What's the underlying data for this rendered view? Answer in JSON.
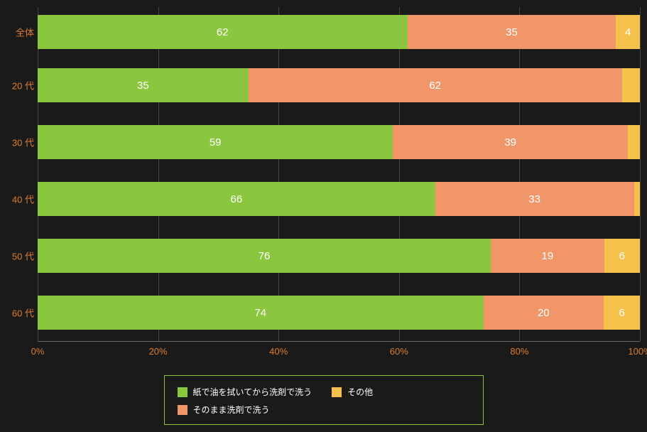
{
  "chart": {
    "type": "stacked-bar-horizontal",
    "background": "#1a1a1a",
    "axis_label_color": "#e07b2e",
    "grid_color": "#444444",
    "x_ticks": [
      "0%",
      "20%",
      "40%",
      "60%",
      "80%",
      "100%"
    ],
    "x_tick_positions": [
      0,
      20,
      40,
      60,
      80,
      100
    ],
    "categories": [
      "全体",
      "20 代",
      "30 代",
      "40 代",
      "50 代",
      "60 代"
    ],
    "series": [
      {
        "name": "紙で油を拭いてから洗剤で洗う",
        "color": "#8bc63f"
      },
      {
        "name": "そのまま洗剤で洗う",
        "color": "#f09669"
      },
      {
        "name": "その他",
        "color": "#f4c24b"
      }
    ],
    "rows": [
      {
        "label": "全体",
        "values": [
          62,
          35,
          4
        ],
        "show": [
          true,
          true,
          true
        ]
      },
      {
        "label": "20 代",
        "values": [
          35,
          62,
          3
        ],
        "show": [
          true,
          true,
          false
        ]
      },
      {
        "label": "30 代",
        "values": [
          59,
          39,
          2
        ],
        "show": [
          true,
          true,
          false
        ]
      },
      {
        "label": "40 代",
        "values": [
          66,
          33,
          1
        ],
        "show": [
          true,
          true,
          false
        ]
      },
      {
        "label": "50 代",
        "values": [
          76,
          19,
          6
        ],
        "show": [
          true,
          true,
          true
        ]
      },
      {
        "label": "60 代",
        "values": [
          74,
          20,
          6
        ],
        "show": [
          true,
          true,
          true
        ]
      }
    ],
    "value_font_size": 15,
    "label_font_size": 13
  },
  "legend": {
    "border_color": "#8bc63f",
    "items": [
      {
        "label": "紙で油を拭いてから洗剤で洗う",
        "color": "#8bc63f"
      },
      {
        "label": "その他",
        "color": "#f4c24b"
      },
      {
        "label": "そのまま洗剤で洗う",
        "color": "#f09669"
      }
    ]
  }
}
